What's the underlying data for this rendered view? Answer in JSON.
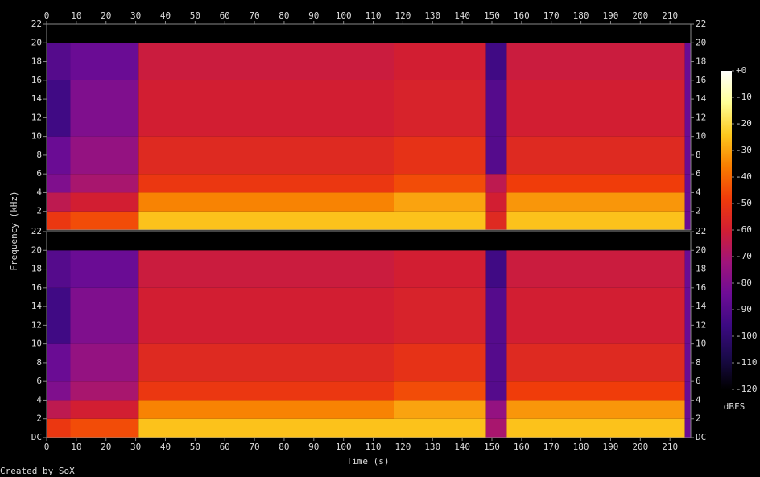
{
  "chart_data": {
    "type": "heatmap",
    "xlabel": "Time (s)",
    "ylabel": "Frequency (kHz)",
    "credit": "Created by SoX",
    "xlim": [
      0,
      217
    ],
    "xticks": [
      0,
      10,
      20,
      30,
      40,
      50,
      60,
      70,
      80,
      90,
      100,
      110,
      120,
      130,
      140,
      150,
      160,
      170,
      180,
      190,
      200,
      210
    ],
    "x_edges": [
      0,
      8,
      31,
      117,
      148,
      155,
      215,
      217
    ],
    "y_edges": [
      0,
      2,
      4,
      6,
      10,
      16,
      20,
      22
    ],
    "panels": [
      {
        "ylim": [
          0,
          22
        ],
        "yticks": [
          2,
          4,
          6,
          8,
          10,
          12,
          14,
          16,
          18,
          20,
          22
        ],
        "values": [
          [
            -50,
            -65,
            -80,
            -85,
            -95,
            -90,
            -120
          ],
          [
            -45,
            -60,
            -70,
            -75,
            -80,
            -85,
            -120
          ],
          [
            -25,
            -35,
            -50,
            -55,
            -60,
            -62,
            -120
          ],
          [
            -25,
            -30,
            -45,
            -52,
            -58,
            -60,
            -120
          ],
          [
            -55,
            -60,
            -65,
            -90,
            -90,
            -95,
            -120
          ],
          [
            -25,
            -32,
            -48,
            -55,
            -60,
            -62,
            -120
          ],
          [
            -85,
            -85,
            -85,
            -85,
            -85,
            -85,
            -120
          ]
        ]
      },
      {
        "ylim": [
          0,
          22
        ],
        "yticks": [
          {
            "value": 0,
            "label": "DC"
          },
          2,
          4,
          6,
          8,
          10,
          12,
          14,
          16,
          18,
          20,
          22
        ],
        "values": [
          [
            -50,
            -65,
            -80,
            -85,
            -95,
            -90,
            -120
          ],
          [
            -45,
            -60,
            -70,
            -75,
            -80,
            -85,
            -120
          ],
          [
            -25,
            -35,
            -50,
            -55,
            -60,
            -62,
            -120
          ],
          [
            -25,
            -30,
            -45,
            -52,
            -58,
            -60,
            -120
          ],
          [
            -70,
            -75,
            -90,
            -90,
            -90,
            -95,
            -120
          ],
          [
            -25,
            -32,
            -48,
            -55,
            -60,
            -62,
            -120
          ],
          [
            -85,
            -85,
            -85,
            -85,
            -85,
            -85,
            -120
          ]
        ]
      }
    ],
    "colorbar": {
      "label": "dBFS",
      "lim": [
        -120,
        0
      ],
      "ticks": [
        {
          "value": 0,
          "label": "+0"
        },
        -10,
        -20,
        -30,
        -40,
        -50,
        -60,
        -70,
        -80,
        -90,
        -100,
        -110,
        -120
      ],
      "colors": [
        "#000000",
        "#1a0a4a",
        "#3c0a82",
        "#6e0c96",
        "#a0147a",
        "#d21e32",
        "#f03c0a",
        "#f87d00",
        "#fcc81e",
        "#ffff96",
        "#ffffff"
      ]
    }
  }
}
